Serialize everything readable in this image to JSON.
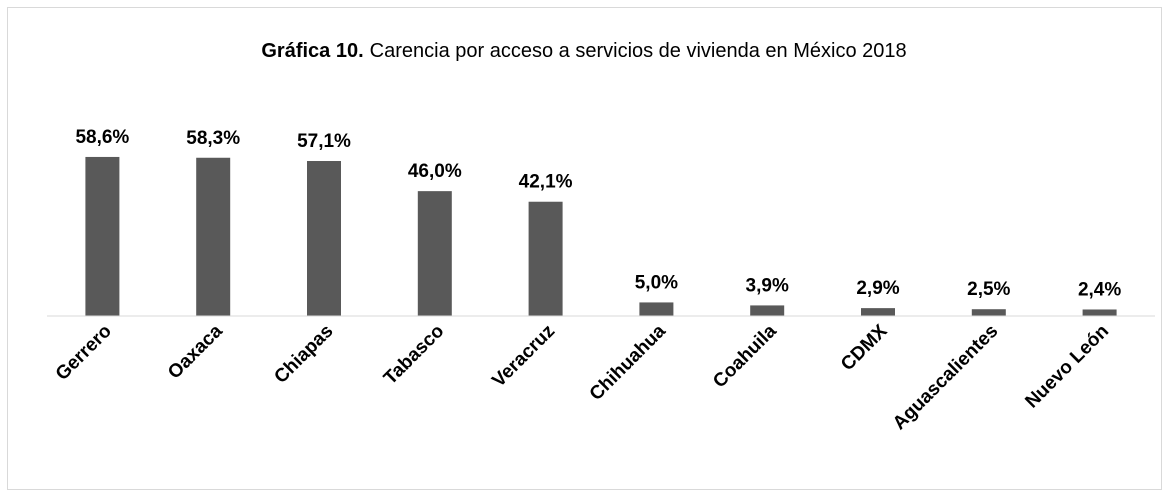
{
  "chart_data": {
    "type": "bar",
    "title_prefix": "Gráfica 10.",
    "title": "Carencia por acceso a servicios de vivienda en México 2018",
    "categories": [
      "Gerrero",
      "Oaxaca",
      "Chiapas",
      "Tabasco",
      "Veracruz",
      "Chihuahua",
      "Coahuila",
      "CDMX",
      "Aguascalientes",
      "Nuevo León"
    ],
    "values": [
      58.6,
      58.3,
      57.1,
      46.0,
      42.1,
      5.0,
      3.9,
      2.9,
      2.5,
      2.4
    ],
    "value_labels": [
      "58,6%",
      "58,3%",
      "57,1%",
      "46,0%",
      "42,1%",
      "5,0%",
      "3,9%",
      "2,9%",
      "2,5%",
      "2,4%"
    ],
    "color": "#595959",
    "ylim": [
      0,
      70
    ]
  }
}
